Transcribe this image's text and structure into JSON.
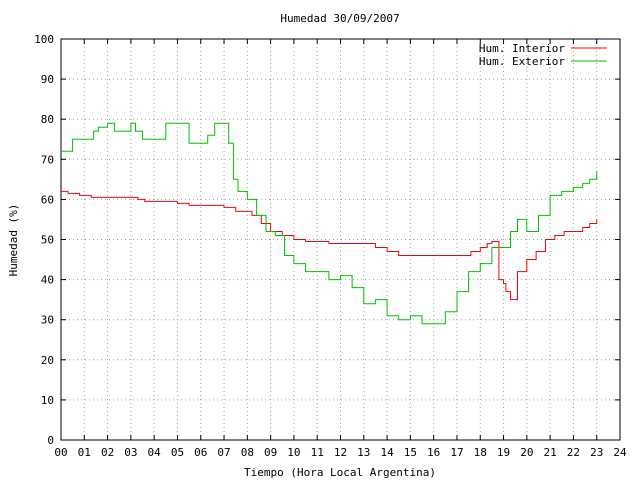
{
  "chart_data": {
    "type": "line",
    "title": "Humedad 30/09/2007",
    "xlabel": "Tiempo (Hora Local Argentina)",
    "ylabel": "Humedad (%)",
    "xlim": [
      0,
      24
    ],
    "ylim": [
      0,
      100
    ],
    "x_ticks": [
      "00",
      "01",
      "02",
      "03",
      "04",
      "05",
      "06",
      "07",
      "08",
      "09",
      "10",
      "11",
      "12",
      "13",
      "14",
      "15",
      "16",
      "17",
      "18",
      "19",
      "20",
      "21",
      "22",
      "23",
      "24"
    ],
    "y_ticks": [
      "0",
      "10",
      "20",
      "30",
      "40",
      "50",
      "60",
      "70",
      "80",
      "90",
      "100"
    ],
    "grid": true,
    "legend_position": "top-right",
    "series": [
      {
        "name": "Hum. Interior",
        "color": "#ff0000",
        "x": [
          0.0,
          0.3,
          0.5,
          0.8,
          1.0,
          1.3,
          1.5,
          1.8,
          2.0,
          2.5,
          3.0,
          3.3,
          3.6,
          4.0,
          4.5,
          5.0,
          5.5,
          6.0,
          6.5,
          7.0,
          7.5,
          7.9,
          8.2,
          8.6,
          9.0,
          9.5,
          10.0,
          10.5,
          11.0,
          11.5,
          12.0,
          12.5,
          13.0,
          13.5,
          14.0,
          14.5,
          15.0,
          15.5,
          16.0,
          16.5,
          17.0,
          17.3,
          17.6,
          18.0,
          18.3,
          18.5,
          18.8,
          19.0,
          19.1,
          19.3,
          19.6,
          20.0,
          20.4,
          20.8,
          21.2,
          21.6,
          22.0,
          22.4,
          22.7,
          23.0
        ],
        "values": [
          62,
          61.5,
          61.5,
          61,
          61,
          60.5,
          60.5,
          60.5,
          60.5,
          60.5,
          60.5,
          60,
          59.5,
          59.5,
          59.5,
          59,
          58.5,
          58.5,
          58.5,
          58,
          57,
          57,
          56,
          54,
          52,
          51,
          50,
          49.5,
          49.5,
          49,
          49,
          49,
          49,
          48,
          47,
          46,
          46,
          46,
          46,
          46,
          46,
          46,
          47,
          48,
          49,
          49.5,
          40,
          39,
          37,
          35,
          42,
          45,
          47,
          50,
          51,
          52,
          52,
          53,
          54,
          55
        ]
      },
      {
        "name": "Hum. Exterior",
        "color": "#00c000",
        "x": [
          0.0,
          0.3,
          0.5,
          1.0,
          1.4,
          1.6,
          2.0,
          2.3,
          2.6,
          3.0,
          3.2,
          3.5,
          4.0,
          4.5,
          4.8,
          5.2,
          5.5,
          6.0,
          6.3,
          6.6,
          7.0,
          7.2,
          7.4,
          7.6,
          8.0,
          8.4,
          8.8,
          9.2,
          9.6,
          10.0,
          10.5,
          11.0,
          11.5,
          12.0,
          12.5,
          13.0,
          13.5,
          14.0,
          14.5,
          15.0,
          15.5,
          16.0,
          16.5,
          17.0,
          17.5,
          18.0,
          18.5,
          19.0,
          19.3,
          19.6,
          20.0,
          20.5,
          21.0,
          21.5,
          22.0,
          22.4,
          22.7,
          23.0
        ],
        "values": [
          72,
          72,
          75,
          75,
          77,
          78,
          79,
          77,
          77,
          79,
          77,
          75,
          75,
          79,
          79,
          79,
          74,
          74,
          76,
          79,
          79,
          74,
          65,
          62,
          60,
          56,
          52,
          51,
          46,
          44,
          42,
          42,
          40,
          41,
          38,
          34,
          35,
          31,
          30,
          31,
          29,
          29,
          32,
          37,
          42,
          44,
          48,
          48,
          52,
          55,
          52,
          56,
          61,
          62,
          63,
          64,
          65,
          67
        ]
      }
    ]
  }
}
